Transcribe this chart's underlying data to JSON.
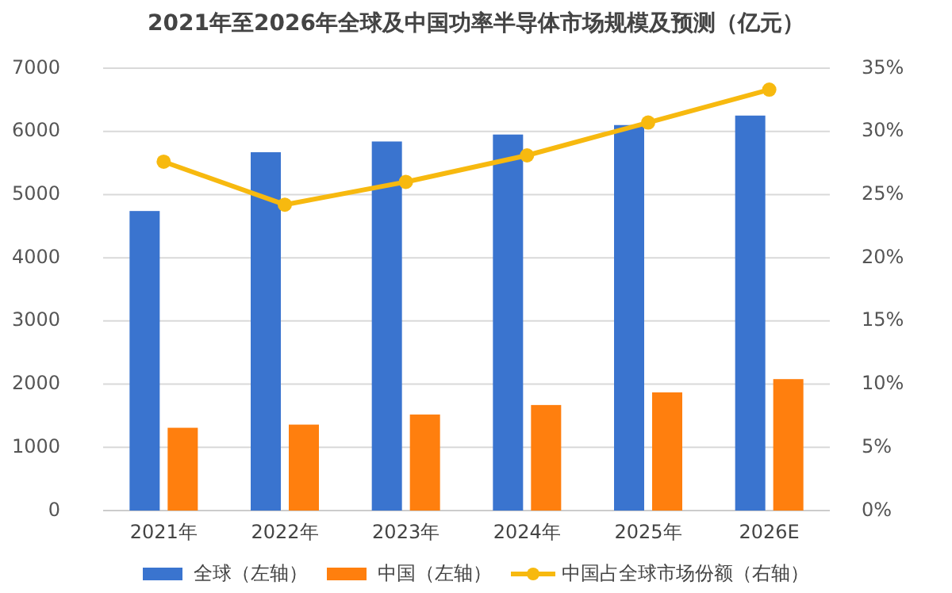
{
  "chart_data": {
    "type": "bar",
    "title": "2021年至2026年全球及中国功率半导体市场规模及预测（亿元）",
    "categories": [
      "2021年",
      "2022年",
      "2023年",
      "2024年",
      "2025年",
      "2026E"
    ],
    "series": [
      {
        "name": "全球（左轴）",
        "color": "#3a74cf",
        "values": [
          4740,
          5670,
          5840,
          5950,
          6100,
          6250
        ]
      },
      {
        "name": "中国（左轴）",
        "color": "#ff7f0e",
        "values": [
          1310,
          1360,
          1520,
          1670,
          1870,
          2080
        ]
      },
      {
        "name": "中国占全球市场份额（右轴）",
        "type": "line",
        "axis": "y2",
        "color": "#f7b90f",
        "marker": "circle",
        "values": [
          27.6,
          24.2,
          26.0,
          28.1,
          30.7,
          33.3
        ]
      }
    ],
    "ylim": [
      0,
      7000
    ],
    "yticks": [
      0,
      1000,
      2000,
      3000,
      4000,
      5000,
      6000,
      7000
    ],
    "y2lim": [
      0,
      35
    ],
    "y2ticks": [
      {
        "value": 0,
        "label": "0%"
      },
      {
        "value": 5,
        "label": "5%"
      },
      {
        "value": 10,
        "label": "10%"
      },
      {
        "value": 15,
        "label": "15%"
      },
      {
        "value": 20,
        "label": "20%"
      },
      {
        "value": 25,
        "label": "25%"
      },
      {
        "value": 30,
        "label": "30%"
      },
      {
        "value": 35,
        "label": "35%"
      }
    ],
    "grid": "y",
    "legend": "bottom"
  }
}
